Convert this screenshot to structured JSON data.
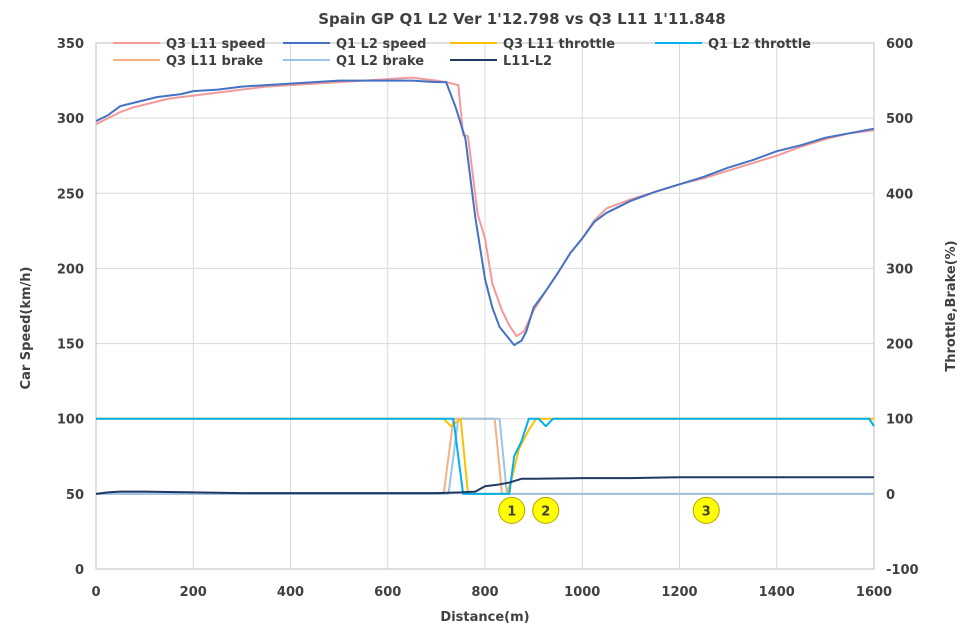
{
  "chart_data": {
    "type": "line",
    "title": "Spain GP Q1 L2 Ver 1'12.798 vs Q3 L11 1'11.848",
    "xlabel": "Distance(m)",
    "ylabel": "Car Speed(km/h)",
    "y2label": "Throttle,Brake(%)",
    "xlim": [
      0,
      1600
    ],
    "ylim": [
      0,
      350
    ],
    "y2lim": [
      -100,
      600
    ],
    "x_ticks": [
      "0",
      "200",
      "400",
      "600",
      "800",
      "1000",
      "1200",
      "1400",
      "1600"
    ],
    "y_ticks": [
      "0",
      "50",
      "100",
      "150",
      "200",
      "250",
      "300",
      "350"
    ],
    "y2_ticks": [
      "-100",
      "0",
      "100",
      "200",
      "300",
      "400",
      "500",
      "600"
    ],
    "grid": true,
    "legend_position": "top",
    "series": [
      {
        "name": "Q3 L11 speed",
        "axis": "left",
        "color": "#F4999A",
        "x": [
          0,
          25,
          50,
          75,
          100,
          125,
          150,
          175,
          200,
          250,
          300,
          350,
          400,
          450,
          500,
          550,
          600,
          650,
          700,
          720,
          745,
          755,
          765,
          785,
          800,
          815,
          835,
          850,
          865,
          880,
          900,
          925,
          950,
          975,
          1000,
          1025,
          1050,
          1100,
          1150,
          1200,
          1250,
          1300,
          1350,
          1400,
          1450,
          1500,
          1550,
          1600
        ],
        "y": [
          296,
          300,
          304,
          307,
          309,
          311,
          313,
          314,
          315,
          317,
          319,
          321,
          322,
          323,
          324,
          325,
          326,
          327,
          325,
          324,
          322,
          289,
          288,
          236,
          220,
          190,
          172,
          162,
          155,
          158,
          172,
          185,
          197,
          210,
          220,
          232,
          240,
          246,
          251,
          256,
          260,
          265,
          270,
          275,
          281,
          286,
          290,
          292
        ]
      },
      {
        "name": "Q1 L2 speed",
        "axis": "left",
        "color": "#4472C4",
        "x": [
          0,
          25,
          50,
          75,
          100,
          125,
          150,
          175,
          200,
          250,
          300,
          350,
          400,
          450,
          500,
          550,
          600,
          650,
          700,
          720,
          740,
          760,
          780,
          800,
          815,
          830,
          845,
          860,
          875,
          885,
          900,
          925,
          950,
          975,
          1000,
          1025,
          1050,
          1100,
          1150,
          1200,
          1250,
          1300,
          1350,
          1400,
          1450,
          1500,
          1550,
          1600
        ],
        "y": [
          298,
          302,
          308,
          310,
          312,
          314,
          315,
          316,
          318,
          319,
          321,
          322,
          323,
          324,
          325,
          325,
          325,
          325,
          324,
          324,
          307,
          286,
          234,
          193,
          174,
          161,
          155,
          149,
          152,
          158,
          174,
          185,
          197,
          210,
          220,
          231,
          237,
          245,
          251,
          256,
          261,
          267,
          272,
          278,
          282,
          287,
          290,
          293
        ]
      },
      {
        "name": "Q3 L11 throttle",
        "axis": "right",
        "color": "#FFC000",
        "x": [
          0,
          700,
          715,
          730,
          750,
          765,
          800,
          835,
          845,
          855,
          870,
          890,
          905,
          920,
          935,
          960,
          1000,
          1100,
          1200,
          1300,
          1400,
          1500,
          1600
        ],
        "y": [
          100,
          100,
          100,
          90,
          100,
          0,
          0,
          0,
          0,
          20,
          60,
          85,
          100,
          100,
          100,
          100,
          100,
          100,
          100,
          100,
          100,
          100,
          100
        ]
      },
      {
        "name": "Q1 L2 throttle",
        "axis": "right",
        "color": "#00B0F0",
        "x": [
          0,
          700,
          720,
          735,
          755,
          800,
          840,
          850,
          860,
          875,
          890,
          900,
          910,
          925,
          940,
          960,
          1000,
          1100,
          1200,
          1300,
          1400,
          1500,
          1590,
          1600
        ],
        "y": [
          100,
          100,
          100,
          100,
          0,
          0,
          0,
          0,
          50,
          70,
          100,
          100,
          100,
          90,
          100,
          100,
          100,
          100,
          100,
          100,
          100,
          100,
          100,
          90
        ]
      },
      {
        "name": "Q3 L11 brake",
        "axis": "right",
        "color": "#F4B183",
        "x": [
          0,
          715,
          735,
          755,
          820,
          835,
          850,
          1600
        ],
        "y": [
          0,
          0,
          100,
          100,
          100,
          0,
          0,
          0
        ]
      },
      {
        "name": "Q1 L2 brake",
        "axis": "right",
        "color": "#9DC3E6",
        "x": [
          0,
          725,
          745,
          760,
          830,
          845,
          860,
          1600
        ],
        "y": [
          0,
          0,
          100,
          100,
          100,
          0,
          0,
          0
        ]
      },
      {
        "name": "L11-L2",
        "axis": "right",
        "color": "#1F3864",
        "x": [
          0,
          25,
          50,
          100,
          200,
          300,
          400,
          500,
          600,
          700,
          750,
          780,
          800,
          825,
          850,
          875,
          900,
          1000,
          1100,
          1200,
          1300,
          1400,
          1500,
          1600
        ],
        "y": [
          0,
          2,
          3,
          3,
          2,
          1,
          1,
          1,
          1,
          1,
          2,
          3,
          10,
          12,
          15,
          20,
          20,
          21,
          21,
          22,
          22,
          22,
          22,
          22
        ]
      }
    ],
    "annotations": [
      {
        "label": "1",
        "x": 855,
        "y": 39
      },
      {
        "label": "2",
        "x": 925,
        "y": 39
      },
      {
        "label": "3",
        "x": 1255,
        "y": 39
      }
    ]
  }
}
